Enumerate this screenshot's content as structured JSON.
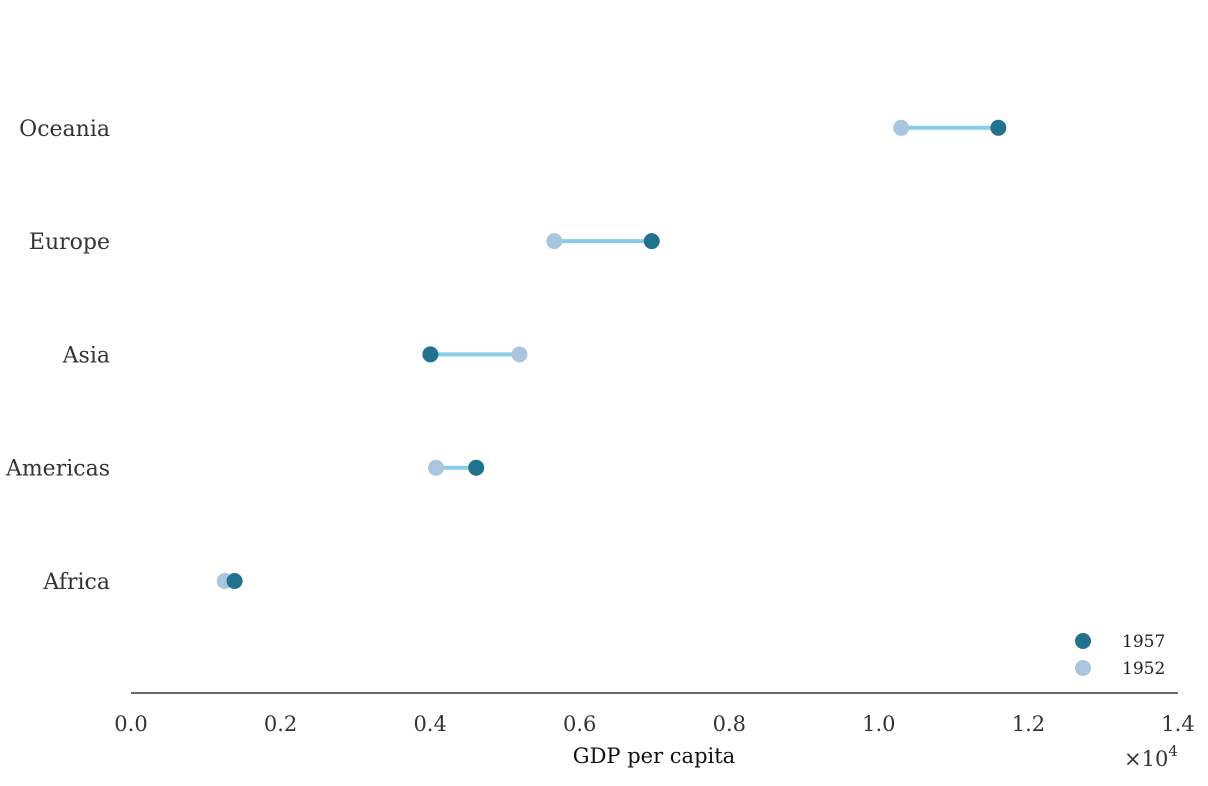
{
  "chart_data": {
    "type": "dumbbell",
    "xlabel": "GDP per capita",
    "x_scale_label": "×10",
    "x_scale_exponent": "4",
    "xlim": [
      0,
      1.4
    ],
    "x_ticks": [
      "0.0",
      "0.2",
      "0.4",
      "0.6",
      "0.8",
      "1.0",
      "1.2",
      "1.4"
    ],
    "categories": [
      "Africa",
      "Americas",
      "Asia",
      "Europe",
      "Oceania"
    ],
    "series": [
      {
        "name": "1957",
        "color": "#21718f",
        "values": [
          0.1385,
          0.4616,
          0.4003,
          0.6963,
          1.1598
        ]
      },
      {
        "name": "1952",
        "color": "#a9c6de",
        "values": [
          0.1253,
          0.4079,
          0.5195,
          0.5661,
          1.0298
        ]
      }
    ],
    "connector_color": "#87cee4",
    "legend_position": "bottom-right"
  }
}
